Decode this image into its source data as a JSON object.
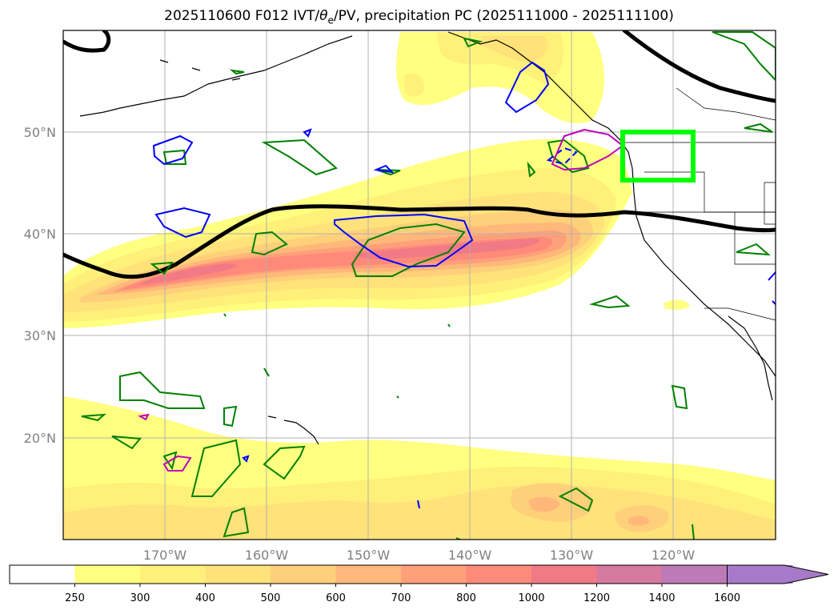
{
  "title": "2025110600 F012 IVT/θe/PV, precipitation PC (2025111000 - 2025111100)",
  "title_parts": {
    "prefix": "2025110600 F012 IVT/",
    "theta": "θ",
    "sub": "e",
    "suffix": "/PV, precipitation PC (2025111000 - 2025111100)"
  },
  "map": {
    "lon_range": [
      -180,
      -110
    ],
    "lat_range": [
      10,
      60
    ],
    "lat_ticks": [
      {
        "value": 20,
        "label": "20°N"
      },
      {
        "value": 30,
        "label": "30°N"
      },
      {
        "value": 40,
        "label": "40°N"
      },
      {
        "value": 50,
        "label": "50°N"
      }
    ],
    "lon_ticks": [
      {
        "value": -170,
        "label": "170°W"
      },
      {
        "value": -160,
        "label": "160°W"
      },
      {
        "value": -150,
        "label": "150°W"
      },
      {
        "value": -140,
        "label": "140°W"
      },
      {
        "value": -130,
        "label": "130°W"
      },
      {
        "value": -120,
        "label": "120°W"
      }
    ],
    "grid": true,
    "highlight_box": {
      "lon": [
        -125,
        -118
      ],
      "lat": [
        45.5,
        50
      ],
      "color": "#00ff00"
    },
    "colors": {
      "jet_line": "#000000",
      "pv_contour": "#008000",
      "blue_contour": "#0000ff",
      "magenta_contour": "#c000c0",
      "coast": "#000000",
      "grid": "#b0b0b0"
    }
  },
  "colorbar": {
    "levels": [
      250,
      300,
      400,
      500,
      600,
      700,
      800,
      1000,
      1200,
      1400,
      1600
    ],
    "colors": [
      "#ffffff",
      "#ffff80",
      "#fff07a",
      "#ffe27a",
      "#ffd07a",
      "#ffb87a",
      "#ffa07a",
      "#ff8a7a",
      "#f07a86",
      "#d67aa0",
      "#bd7ab8",
      "#a67ac8"
    ],
    "extend": "max"
  }
}
